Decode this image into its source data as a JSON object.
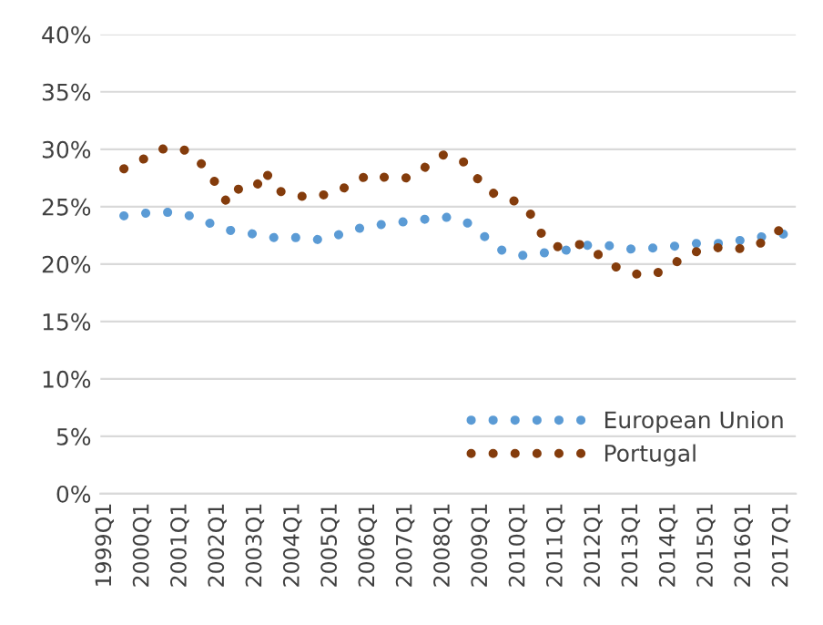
{
  "chart_data": {
    "type": "line",
    "categories": [
      "1999Q1",
      null,
      null,
      null,
      "2000Q1",
      null,
      null,
      null,
      "2001Q1",
      null,
      null,
      null,
      "2002Q1",
      null,
      null,
      null,
      "2003Q1",
      null,
      null,
      null,
      "2004Q1",
      null,
      null,
      null,
      "2005Q1",
      null,
      null,
      null,
      "2006Q1",
      null,
      null,
      null,
      "2007Q1",
      null,
      null,
      null,
      "2008Q1",
      null,
      null,
      null,
      "2009Q1",
      null,
      null,
      null,
      "2010Q1",
      null,
      null,
      null,
      "2011Q1",
      null,
      null,
      null,
      "2012Q1",
      null,
      null,
      null,
      "2013Q1",
      null,
      null,
      null,
      "2014Q1",
      null,
      null,
      null,
      "2015Q1",
      null,
      null,
      null,
      "2016Q1",
      null,
      null,
      null,
      "2017Q1",
      null
    ],
    "series": [
      {
        "name": "European Union",
        "color": "#5b9bd5",
        "values": [
          null,
          null,
          24.2,
          24.3,
          24.4,
          24.5,
          24.5,
          24.5,
          24.4,
          24.2,
          23.9,
          23.6,
          23.3,
          23.0,
          22.8,
          22.7,
          22.6,
          22.5,
          22.3,
          22.3,
          22.3,
          22.3,
          22.2,
          22.1,
          22.3,
          22.6,
          22.8,
          23.1,
          23.3,
          23.4,
          23.5,
          23.6,
          23.7,
          23.8,
          23.9,
          24.0,
          24.1,
          24.0,
          23.8,
          23.4,
          22.7,
          21.9,
          21.3,
          20.9,
          20.8,
          20.7,
          20.9,
          21.0,
          21.1,
          21.2,
          21.4,
          21.6,
          21.7,
          21.6,
          21.6,
          21.5,
          21.3,
          21.3,
          21.4,
          21.4,
          21.5,
          21.6,
          21.7,
          21.8,
          21.8,
          21.8,
          21.8,
          22.0,
          22.1,
          22.2,
          22.4,
          22.5,
          22.6,
          22.6
        ]
      },
      {
        "name": "Portugal",
        "color": "#843c0c",
        "values": [
          null,
          null,
          28.3,
          28.7,
          29.1,
          29.6,
          30.0,
          30.1,
          30.1,
          29.7,
          29.0,
          27.9,
          26.8,
          25.3,
          26.5,
          26.6,
          26.6,
          28.2,
          26.6,
          26.2,
          25.9,
          25.9,
          25.8,
          26.0,
          26.1,
          26.5,
          26.8,
          27.3,
          27.8,
          27.7,
          27.5,
          27.5,
          27.5,
          27.8,
          28.4,
          29.0,
          29.5,
          29.4,
          29.0,
          28.2,
          27.0,
          26.3,
          25.9,
          25.7,
          25.3,
          24.8,
          23.1,
          22.1,
          21.5,
          21.6,
          21.7,
          21.7,
          21.2,
          20.4,
          19.9,
          19.5,
          19.3,
          19.0,
          19.1,
          19.3,
          19.7,
          20.3,
          20.8,
          21.1,
          21.3,
          21.4,
          21.5,
          21.4,
          21.3,
          21.6,
          21.9,
          22.5,
          23.1,
          null
        ]
      }
    ],
    "ylim": [
      0,
      40
    ],
    "yticks": [
      {
        "value": 0,
        "label": "0%"
      },
      {
        "value": 5,
        "label": "5%"
      },
      {
        "value": 10,
        "label": "10%"
      },
      {
        "value": 15,
        "label": "15%"
      },
      {
        "value": 20,
        "label": "20%"
      },
      {
        "value": 25,
        "label": "25%"
      },
      {
        "value": 30,
        "label": "30%"
      },
      {
        "value": 35,
        "label": "35%"
      },
      {
        "value": 40,
        "label": "40%"
      }
    ],
    "grid": "y",
    "legend": "bottom right",
    "line_style": "dotted",
    "marker": "none"
  }
}
